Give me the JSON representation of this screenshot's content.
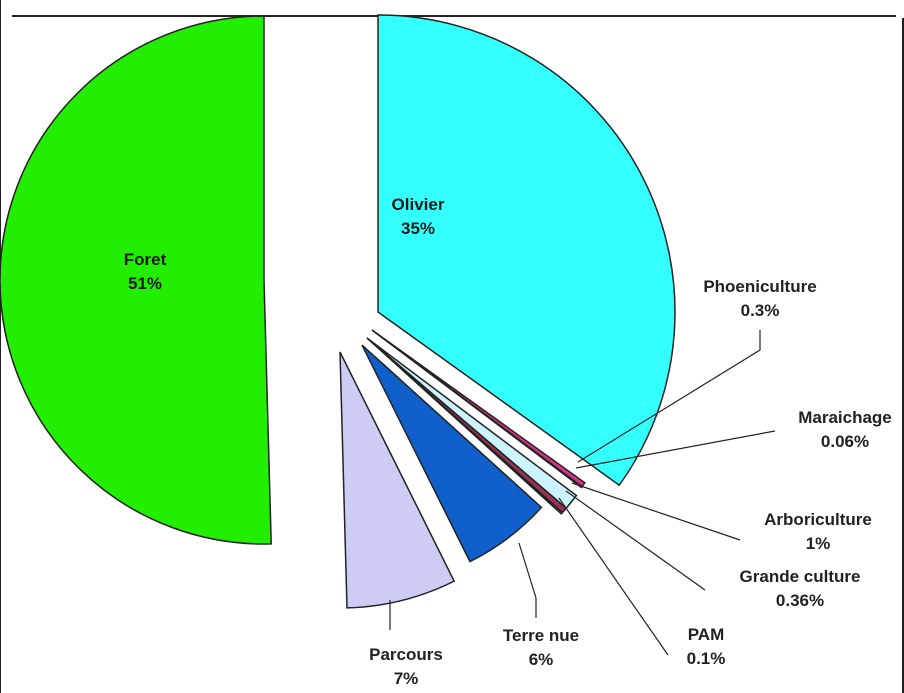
{
  "chart_data": {
    "type": "pie",
    "exploded": true,
    "title": "",
    "slices": [
      {
        "name": "Olivier",
        "percent_label": "35%",
        "value": 35.3,
        "color": "#33ffff"
      },
      {
        "name": "Phoeniculture",
        "percent_label": "0.3%",
        "value": 0.3,
        "color": "#d63384"
      },
      {
        "name": "Maraichage",
        "percent_label": "0.06%",
        "value": 0.06,
        "color": "#111111"
      },
      {
        "name": "Arboriculture",
        "percent_label": "1%",
        "value": 1.0,
        "color": "#ccf4ff"
      },
      {
        "name": "Grande culture",
        "percent_label": "0.36%",
        "value": 0.36,
        "color": "#993355"
      },
      {
        "name": "PAM",
        "percent_label": "0.1%",
        "value": 0.1,
        "color": "#f0e0d0"
      },
      {
        "name": "Terre nue",
        "percent_label": "6%",
        "value": 6.0,
        "color": "#1060cc"
      },
      {
        "name": "Parcours",
        "percent_label": "7%",
        "value": 7.0,
        "color": "#ccccf4"
      },
      {
        "name": "Foret",
        "percent_label": "51%",
        "value": 51.0,
        "color": "#22ee00"
      }
    ]
  }
}
